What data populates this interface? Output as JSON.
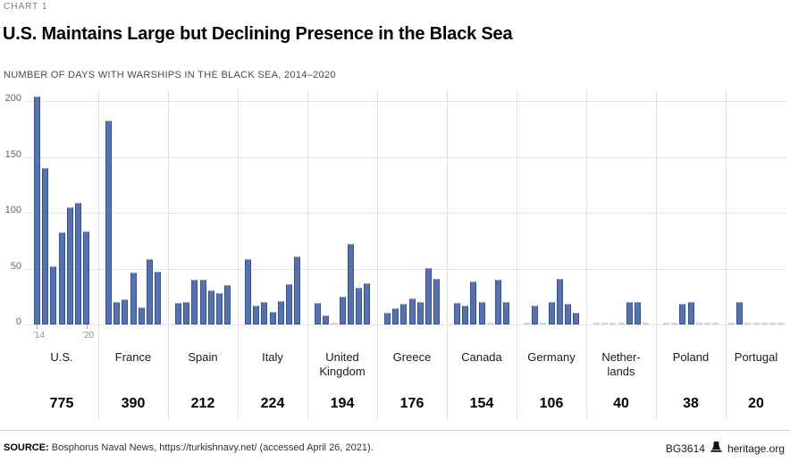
{
  "chart_label": "CHART 1",
  "title": "U.S. Maintains Large but Declining Presence in the Black Sea",
  "subtitle": "NUMBER OF DAYS WITH WARSHIPS IN THE BLACK SEA, 2014–2020",
  "y_axis": {
    "ticks": [
      0,
      50,
      100,
      150,
      200
    ]
  },
  "x_axis": {
    "first_tick_label": "'14",
    "last_tick_label": "'20"
  },
  "chart_data": {
    "type": "bar",
    "title": "U.S. Maintains Large but Declining Presence in the Black Sea",
    "ylabel": "Number of days with warships in the Black Sea",
    "ylim": [
      0,
      200
    ],
    "grid": true,
    "years": [
      2014,
      2015,
      2016,
      2017,
      2018,
      2019,
      2020
    ],
    "series": [
      {
        "name": "U.S.",
        "label_lines": [
          "U.S."
        ],
        "total": 775,
        "values": [
          204,
          140,
          52,
          82,
          105,
          109,
          83
        ]
      },
      {
        "name": "France",
        "label_lines": [
          "France"
        ],
        "total": 390,
        "values": [
          182,
          20,
          22,
          46,
          15,
          58,
          47
        ]
      },
      {
        "name": "Spain",
        "label_lines": [
          "Spain"
        ],
        "total": 212,
        "values": [
          19,
          20,
          40,
          40,
          30,
          28,
          35
        ]
      },
      {
        "name": "Italy",
        "label_lines": [
          "Italy"
        ],
        "total": 224,
        "values": [
          58,
          17,
          20,
          11,
          21,
          36,
          61
        ]
      },
      {
        "name": "United Kingdom",
        "label_lines": [
          "United",
          "Kingdom"
        ],
        "total": 194,
        "values": [
          19,
          8,
          0,
          25,
          72,
          33,
          37
        ]
      },
      {
        "name": "Greece",
        "label_lines": [
          "Greece"
        ],
        "total": 176,
        "values": [
          10,
          14,
          18,
          23,
          20,
          50,
          41
        ]
      },
      {
        "name": "Canada",
        "label_lines": [
          "Canada"
        ],
        "total": 154,
        "values": [
          19,
          17,
          38,
          20,
          0,
          40,
          20
        ]
      },
      {
        "name": "Germany",
        "label_lines": [
          "Germany"
        ],
        "total": 106,
        "values": [
          0,
          17,
          0,
          20,
          41,
          18,
          10
        ]
      },
      {
        "name": "Netherlands",
        "label_lines": [
          "Nether-",
          "lands"
        ],
        "total": 40,
        "values": [
          0,
          0,
          0,
          0,
          20,
          20,
          0
        ]
      },
      {
        "name": "Poland",
        "label_lines": [
          "Poland"
        ],
        "total": 38,
        "values": [
          0,
          0,
          18,
          20,
          0,
          0,
          0
        ]
      },
      {
        "name": "Portugal",
        "label_lines": [
          "Portugal"
        ],
        "total": 20,
        "values": [
          0,
          20,
          0,
          0,
          0,
          0,
          0
        ]
      }
    ],
    "bar_color": "#5471b2",
    "bar_border_color": "#33539c",
    "zero_dash_color": "#ccd2e0",
    "gridline_color": "#e3e3e3"
  },
  "footer": {
    "source_label": "SOURCE:",
    "source_text": " Bosphorus Naval News, https://turkishnavy.net/ (accessed April 26, 2021).",
    "doc_id": "BG3614",
    "site": "heritage.org"
  }
}
